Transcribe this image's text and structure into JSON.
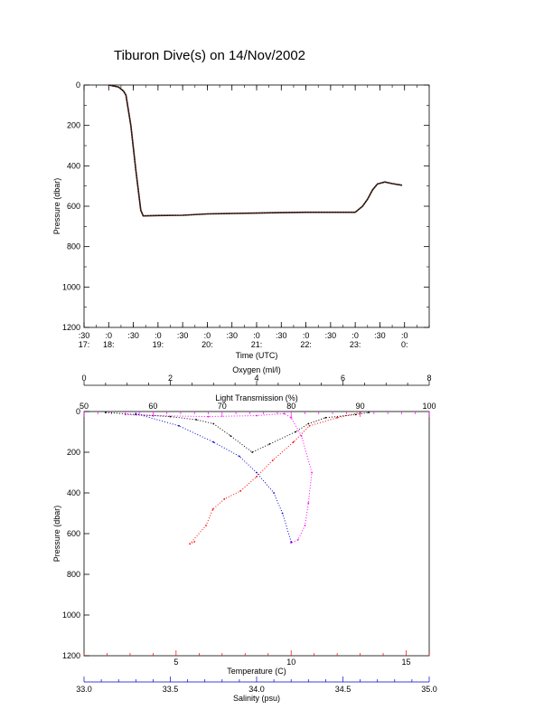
{
  "title": "Tiburon Dive(s) on 14/Nov/2002",
  "colors": {
    "trace": "#cc2200",
    "trace_dark": "#111111",
    "magenta": "#ff00ff",
    "red": "#ff0000",
    "blue": "#0000cc",
    "black": "#000000"
  },
  "chart_data": [
    {
      "type": "line",
      "xlabel": "Time (UTC)",
      "ylabel": "Pressure (dbar)",
      "x_unit": "hours UTC",
      "xlim": [
        17.5,
        24.5
      ],
      "ylim": [
        1200,
        0
      ],
      "y_ticks": [
        0,
        200,
        400,
        600,
        800,
        1000,
        1200
      ],
      "x_ticks": [
        {
          "value": 17.5,
          "top": ":30",
          "bottom": "17:"
        },
        {
          "value": 18.0,
          "top": ":0",
          "bottom": "18:"
        },
        {
          "value": 18.5,
          "top": ":30",
          "bottom": ""
        },
        {
          "value": 19.0,
          "top": ":0",
          "bottom": "19:"
        },
        {
          "value": 19.5,
          "top": ":30",
          "bottom": ""
        },
        {
          "value": 20.0,
          "top": ":0",
          "bottom": "20:"
        },
        {
          "value": 20.5,
          "top": ":30",
          "bottom": ""
        },
        {
          "value": 21.0,
          "top": ":0",
          "bottom": "21:"
        },
        {
          "value": 21.5,
          "top": ":30",
          "bottom": ""
        },
        {
          "value": 22.0,
          "top": ":0",
          "bottom": "22:"
        },
        {
          "value": 22.5,
          "top": ":30",
          "bottom": ""
        },
        {
          "value": 23.0,
          "top": ":0",
          "bottom": "23:"
        },
        {
          "value": 23.5,
          "top": ":30",
          "bottom": ""
        },
        {
          "value": 24.0,
          "top": ":0",
          "bottom": "0:"
        }
      ],
      "x_minor_step": 0.25,
      "series": [
        {
          "x": [
            18.0,
            18.2,
            18.3,
            18.35,
            18.45,
            18.55,
            18.65,
            18.7,
            19.0,
            19.5,
            20.0,
            20.5,
            21.0,
            21.5,
            22.0,
            22.5,
            23.0,
            23.15,
            23.25,
            23.35,
            23.45,
            23.6,
            23.75,
            23.95
          ],
          "y": [
            0,
            10,
            30,
            50,
            200,
            420,
            620,
            648,
            646,
            645,
            638,
            636,
            634,
            632,
            630,
            630,
            630,
            600,
            565,
            520,
            490,
            480,
            488,
            496
          ]
        }
      ]
    },
    {
      "type": "scatter",
      "ylabel": "Pressure (dbar)",
      "ylim": [
        1200,
        0
      ],
      "y_ticks": [
        0,
        200,
        400,
        600,
        800,
        1000,
        1200
      ],
      "axes": {
        "oxygen": {
          "label": "Oxygen (ml/l)",
          "lim": [
            0,
            8
          ],
          "ticks": [
            0,
            2,
            4,
            6,
            8
          ]
        },
        "light_transmission": {
          "label": "Light Transmission (%)",
          "lim": [
            50,
            100
          ],
          "ticks": [
            50,
            60,
            70,
            80,
            90,
            100
          ]
        },
        "temperature": {
          "label": "Temperature (C)",
          "lim": [
            1,
            16
          ],
          "ticks": [
            5,
            10,
            15
          ]
        },
        "salinity": {
          "label": "Salinity (psu)",
          "lim": [
            33.0,
            35.0
          ],
          "ticks": [
            "33.0",
            "33.5",
            "34.0",
            "34.5",
            "35.0"
          ]
        }
      },
      "series": [
        {
          "name": "Oxygen",
          "x": [
            0.5,
            1.2,
            2.0,
            2.6,
            3.0,
            3.4,
            3.9,
            4.3,
            4.9,
            5.2,
            5.6,
            6.3,
            6.6
          ],
          "y": [
            5,
            15,
            25,
            40,
            60,
            120,
            200,
            160,
            100,
            60,
            30,
            15,
            5
          ]
        },
        {
          "name": "Light Transmission",
          "x": [
            56,
            60,
            68,
            75,
            79,
            80,
            81.5,
            83,
            82.5,
            82,
            81,
            80
          ],
          "y": [
            15,
            20,
            25,
            20,
            10,
            30,
            120,
            300,
            450,
            560,
            630,
            645
          ]
        },
        {
          "name": "Temperature",
          "x": [
            13,
            12,
            10.8,
            10.1,
            9.2,
            8.5,
            7.8,
            7.1,
            6.6,
            6.3,
            5.6,
            5.8
          ],
          "y": [
            5,
            30,
            70,
            150,
            240,
            320,
            390,
            430,
            480,
            560,
            650,
            640
          ]
        },
        {
          "name": "Salinity",
          "x": [
            33.3,
            33.55,
            33.75,
            33.9,
            34.0,
            34.1,
            34.15,
            34.2
          ],
          "y": [
            10,
            70,
            150,
            220,
            300,
            400,
            500,
            640
          ]
        }
      ]
    }
  ]
}
